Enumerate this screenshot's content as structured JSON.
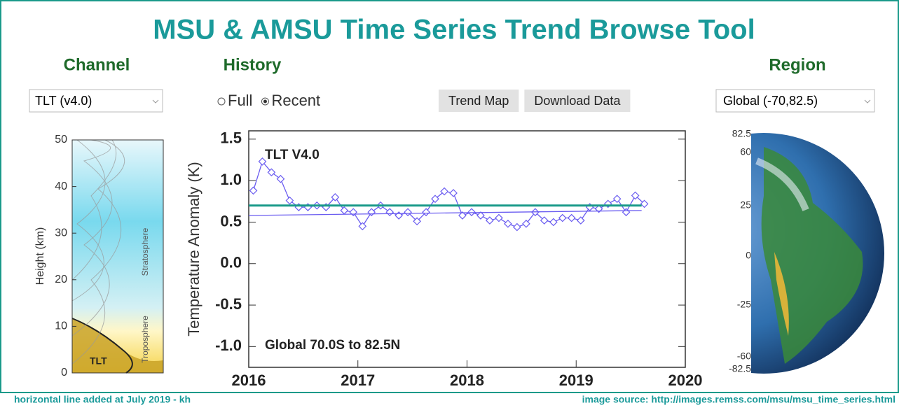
{
  "header": {
    "title": "MSU & AMSU Time Series Trend Browse Tool"
  },
  "controls": {
    "channel_label": "Channel",
    "history_label": "History",
    "region_label": "Region",
    "channel_select": "TLT (v4.0)",
    "history_options": [
      "Full",
      "Recent"
    ],
    "history_selected": "Recent",
    "buttons": [
      "Trend Map",
      "Download Data"
    ],
    "region_select": "Global (-70,82.5)"
  },
  "height_panel": {
    "ylabel": "Height  (km)",
    "ylim": [
      0,
      50
    ],
    "yticks": [
      0,
      10,
      20,
      30,
      40,
      50
    ],
    "labels": [
      "TLT",
      "Troposphere",
      "Stratosphere"
    ]
  },
  "chart_data": {
    "type": "line",
    "ylabel": "Temperature Anomaly (K)",
    "annotations": [
      "TLT V4.0",
      "Global  70.0S to  82.5N"
    ],
    "xlim": [
      2016,
      2020
    ],
    "xticks": [
      2016,
      2017,
      2018,
      2019,
      2020
    ],
    "ylim": [
      -1.25,
      1.6
    ],
    "yticks": [
      {
        "value": 1.5,
        "label": "1.5"
      },
      {
        "value": 1.0,
        "label": "1.0"
      },
      {
        "value": 0.5,
        "label": "0.5"
      },
      {
        "value": 0.0,
        "label": "0.0"
      },
      {
        "value": -0.5,
        "label": "-0.5"
      },
      {
        "value": -1.0,
        "label": "-1.0"
      }
    ],
    "series": [
      {
        "color": "#6a5cf0",
        "markers": true,
        "x": [
          2016.042,
          2016.125,
          2016.208,
          2016.292,
          2016.375,
          2016.458,
          2016.542,
          2016.625,
          2016.708,
          2016.792,
          2016.875,
          2016.958,
          2017.042,
          2017.125,
          2017.208,
          2017.292,
          2017.375,
          2017.458,
          2017.542,
          2017.625,
          2017.708,
          2017.792,
          2017.875,
          2017.958,
          2018.042,
          2018.125,
          2018.208,
          2018.292,
          2018.375,
          2018.458,
          2018.542,
          2018.625,
          2018.708,
          2018.792,
          2018.875,
          2018.958,
          2019.042,
          2019.125,
          2019.208,
          2019.292,
          2019.375,
          2019.458,
          2019.542,
          2019.625
        ],
        "values": [
          0.88,
          1.23,
          1.1,
          1.02,
          0.76,
          0.68,
          0.68,
          0.7,
          0.68,
          0.8,
          0.64,
          0.62,
          0.45,
          0.62,
          0.7,
          0.62,
          0.58,
          0.62,
          0.51,
          0.62,
          0.78,
          0.87,
          0.85,
          0.58,
          0.62,
          0.58,
          0.52,
          0.55,
          0.48,
          0.44,
          0.48,
          0.62,
          0.52,
          0.5,
          0.55,
          0.55,
          0.52,
          0.68,
          0.66,
          0.72,
          0.78,
          0.62,
          0.82,
          0.72
        ]
      },
      {
        "color": "#6a5cf0",
        "markers": false,
        "x": [
          2016.0,
          2019.6
        ],
        "values": [
          0.58,
          0.64
        ]
      },
      {
        "color": "#1a9a8a",
        "markers": false,
        "width": 3,
        "x": [
          2016.0,
          2019.6
        ],
        "values": [
          0.7,
          0.7
        ]
      }
    ]
  },
  "globe_labels": [
    "82.5",
    "60",
    "25",
    "0",
    "-25",
    "-60",
    "-82.5"
  ],
  "footer": {
    "left": "horizontal line added at July 2019  - kh",
    "right": "image source: http://images.remss.com/msu/msu_time_series.html"
  }
}
